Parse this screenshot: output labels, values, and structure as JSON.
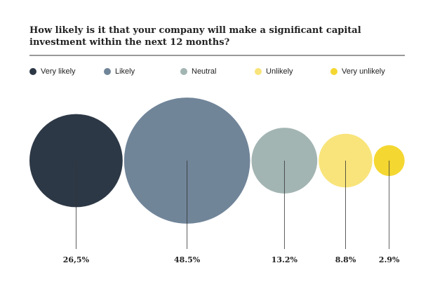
{
  "chart_data": {
    "type": "bubble",
    "title": "How likely is it that your company will make a significant capital investment within the next 12 months?",
    "categories": [
      "Very likely",
      "Likely",
      "Neutral",
      "Unlikely",
      "Very unlikely"
    ],
    "values": [
      26.5,
      48.5,
      13.2,
      8.8,
      2.9
    ],
    "value_labels": [
      "26,5%",
      "48.5%",
      "13.2%",
      "8.8%",
      "2.9%"
    ],
    "colors": [
      "#2d3846",
      "#718599",
      "#a3b5b3",
      "#f8e47a",
      "#f4d731"
    ]
  }
}
